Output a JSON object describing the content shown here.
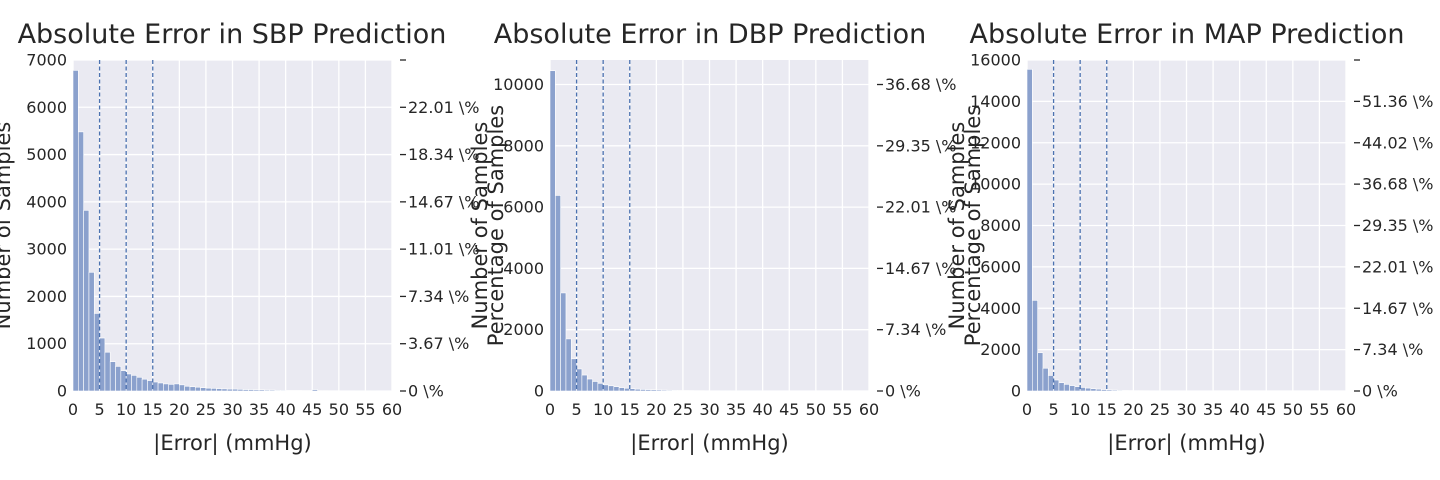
{
  "chart_data": [
    {
      "type": "bar",
      "title": "Absolute Error in SBP Prediction",
      "xlabel": "|Error| (mmHg)",
      "ylabel": "Number of Samples",
      "ylabel_right": "Percentage of Samples",
      "xlim": [
        0,
        60
      ],
      "ylim": [
        0,
        7000
      ],
      "x_ticks": [
        "0",
        "5",
        "10",
        "15",
        "20",
        "25",
        "30",
        "35",
        "40",
        "45",
        "50",
        "55",
        "60"
      ],
      "y_ticks": [
        "0",
        "1000",
        "2000",
        "3000",
        "4000",
        "5000",
        "6000",
        "7000"
      ],
      "y_tick_values": [
        0,
        1000,
        2000,
        3000,
        4000,
        5000,
        6000,
        7000
      ],
      "right_ticks": [
        {
          "value": 0,
          "label": "0 \\%"
        },
        {
          "value": 1000,
          "label": "3.67 \\%"
        },
        {
          "value": 2000,
          "label": "7.34 \\%"
        },
        {
          "value": 3000,
          "label": "11.01 \\%"
        },
        {
          "value": 4000,
          "label": "14.67 \\%"
        },
        {
          "value": 5000,
          "label": "18.34 \\%"
        },
        {
          "value": 6000,
          "label": "22.01 \\%"
        },
        {
          "value": 7000,
          "label": ""
        }
      ],
      "vlines": [
        5,
        10,
        15
      ],
      "bin_width": 1,
      "bins": [
        0,
        1,
        2,
        3,
        4,
        5,
        6,
        7,
        8,
        9,
        10,
        11,
        12,
        13,
        14,
        15,
        16,
        17,
        18,
        19,
        20,
        21,
        22,
        23,
        24,
        25,
        26,
        27,
        28,
        29,
        30,
        31,
        32,
        33,
        34,
        35,
        36,
        37,
        38,
        39,
        40,
        41,
        42,
        43,
        44,
        45,
        46,
        47,
        48,
        49,
        50,
        51,
        52,
        53,
        54,
        55,
        56,
        57,
        58,
        59
      ],
      "values": [
        6780,
        5480,
        3820,
        2510,
        1640,
        1120,
        820,
        620,
        520,
        430,
        360,
        330,
        290,
        250,
        220,
        190,
        170,
        150,
        140,
        150,
        130,
        100,
        90,
        80,
        70,
        60,
        55,
        50,
        45,
        40,
        40,
        35,
        30,
        30,
        25,
        25,
        20,
        20,
        15,
        15,
        10,
        10,
        10,
        8,
        8,
        30,
        5,
        5,
        4,
        4,
        3,
        3,
        3,
        2,
        2,
        2,
        2,
        1,
        1,
        1
      ],
      "grid": true
    },
    {
      "type": "bar",
      "title": "Absolute Error in DBP Prediction",
      "xlabel": "|Error| (mmHg)",
      "ylabel": "Number of Samples",
      "ylabel_right": "Percentage of Samples",
      "xlim": [
        0,
        60
      ],
      "ylim": [
        0,
        10800
      ],
      "x_ticks": [
        "0",
        "5",
        "10",
        "15",
        "20",
        "25",
        "30",
        "35",
        "40",
        "45",
        "50",
        "55",
        "60"
      ],
      "y_ticks": [
        "0",
        "2000",
        "4000",
        "6000",
        "8000",
        "10000"
      ],
      "y_tick_values": [
        0,
        2000,
        4000,
        6000,
        8000,
        10000
      ],
      "right_ticks": [
        {
          "value": 0,
          "label": "0 \\%"
        },
        {
          "value": 2000,
          "label": "7.34 \\%"
        },
        {
          "value": 4000,
          "label": "14.67 \\%"
        },
        {
          "value": 6000,
          "label": "22.01 \\%"
        },
        {
          "value": 8000,
          "label": "29.35 \\%"
        },
        {
          "value": 10000,
          "label": "36.68 \\%"
        }
      ],
      "vlines": [
        5,
        10,
        15
      ],
      "bin_width": 1,
      "bins": [
        0,
        1,
        2,
        3,
        4,
        5,
        6,
        7,
        8,
        9,
        10,
        11,
        12,
        13,
        14,
        15,
        16,
        17,
        18,
        19,
        20,
        21,
        22,
        23,
        24,
        25,
        26,
        27,
        28,
        29,
        30,
        31,
        32,
        33,
        34,
        35,
        36,
        37,
        38,
        39,
        40,
        41,
        42,
        43,
        44,
        45,
        46,
        47,
        48,
        49,
        50,
        51,
        52,
        53,
        54,
        55,
        56,
        57,
        58,
        59
      ],
      "values": [
        10450,
        6380,
        3200,
        1700,
        1050,
        720,
        520,
        390,
        310,
        250,
        200,
        170,
        140,
        110,
        90,
        75,
        60,
        50,
        45,
        40,
        35,
        30,
        25,
        20,
        15,
        15,
        12,
        10,
        8,
        6,
        5,
        5,
        4,
        4,
        3,
        3,
        2,
        2,
        2,
        2,
        1,
        1,
        1,
        1,
        1,
        1,
        1,
        1,
        1,
        1,
        0,
        0,
        0,
        0,
        0,
        0,
        0,
        0,
        0,
        0
      ],
      "grid": true
    },
    {
      "type": "bar",
      "title": "Absolute Error in MAP Prediction",
      "xlabel": "|Error| (mmHg)",
      "ylabel": "Number of Samples",
      "ylabel_right": "Percentage of Samples",
      "xlim": [
        0,
        60
      ],
      "ylim": [
        0,
        16000
      ],
      "x_ticks": [
        "0",
        "5",
        "10",
        "15",
        "20",
        "25",
        "30",
        "35",
        "40",
        "45",
        "50",
        "55",
        "60"
      ],
      "y_ticks": [
        "0",
        "2000",
        "4000",
        "6000",
        "8000",
        "10000",
        "12000",
        "14000",
        "16000"
      ],
      "y_tick_values": [
        0,
        2000,
        4000,
        6000,
        8000,
        10000,
        12000,
        14000,
        16000
      ],
      "right_ticks": [
        {
          "value": 0,
          "label": "0 \\%"
        },
        {
          "value": 2000,
          "label": "7.34 \\%"
        },
        {
          "value": 4000,
          "label": "14.67 \\%"
        },
        {
          "value": 6000,
          "label": "22.01 \\%"
        },
        {
          "value": 8000,
          "label": "29.35 \\%"
        },
        {
          "value": 10000,
          "label": "36.68 \\%"
        },
        {
          "value": 12000,
          "label": "44.02 \\%"
        },
        {
          "value": 14000,
          "label": "51.36 \\%"
        },
        {
          "value": 16000,
          "label": ""
        }
      ],
      "vlines": [
        5,
        10,
        15
      ],
      "bin_width": 1,
      "bins": [
        0,
        1,
        2,
        3,
        4,
        5,
        6,
        7,
        8,
        9,
        10,
        11,
        12,
        13,
        14,
        15,
        16,
        17,
        18,
        19,
        20,
        21,
        22,
        23,
        24,
        25,
        26,
        27,
        28,
        29,
        30,
        31,
        32,
        33,
        34,
        35,
        36,
        37,
        38,
        39,
        40,
        41,
        42,
        43,
        44,
        45,
        46,
        47,
        48,
        49,
        50,
        51,
        52,
        53,
        54,
        55,
        56,
        57,
        58,
        59
      ],
      "values": [
        15550,
        4380,
        1850,
        1100,
        750,
        530,
        400,
        320,
        260,
        210,
        170,
        140,
        110,
        90,
        70,
        55,
        45,
        35,
        25,
        20,
        15,
        12,
        10,
        8,
        6,
        5,
        4,
        3,
        2,
        2,
        1,
        1,
        1,
        1,
        1,
        0,
        0,
        0,
        0,
        0,
        0,
        0,
        0,
        0,
        0,
        0,
        0,
        0,
        0,
        0,
        0,
        0,
        0,
        0,
        0,
        0,
        0,
        0,
        0,
        0
      ],
      "grid": true
    }
  ],
  "colors": {
    "panel_bg": "#eaeaf2",
    "grid": "#ffffff",
    "bar": "#8ba1cd",
    "bar_edge": "#ffffff",
    "vline": "#4c72b0",
    "text": "#262626"
  }
}
